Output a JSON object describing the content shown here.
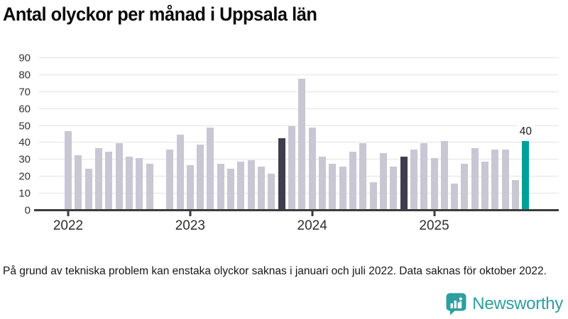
{
  "title": "Antal olyckor per månad i Uppsala län",
  "footnote": "På grund av tekniska problem kan enstaka olyckor saknas i januari och juli 2022. Data saknas för oktober 2022.",
  "logo": {
    "label": "Newsworthy",
    "icon": "newsworthy-bubble-chart-icon",
    "color": "#2f9e9e"
  },
  "colors": {
    "bar_normal": "#c8c7d3",
    "bar_highlight_dark": "#3f3c4e",
    "bar_highlight_teal": "#00a09a",
    "gridline": "#e4e4e4",
    "axis": "#3b3b3b"
  },
  "chart_data": {
    "type": "bar",
    "title": "Antal olyckor per månad i Uppsala län",
    "xlabel": "",
    "ylabel": "",
    "ylim": [
      0,
      90
    ],
    "yticks": [
      0,
      10,
      20,
      30,
      40,
      50,
      60,
      70,
      80,
      90
    ],
    "grid": true,
    "legend": "none",
    "x_unit": "month",
    "x_range": [
      "2022-01",
      "2025-10"
    ],
    "missing_months": [
      "2022-10"
    ],
    "annotation": {
      "text": "40",
      "month_index": 45
    },
    "year_ticks": [
      {
        "label": "2022",
        "month_index": 0
      },
      {
        "label": "2023",
        "month_index": 12
      },
      {
        "label": "2024",
        "month_index": 24
      },
      {
        "label": "2025",
        "month_index": 36
      }
    ],
    "months": [
      {
        "m": "2022-01",
        "v": 46,
        "c": "normal"
      },
      {
        "m": "2022-02",
        "v": 32,
        "c": "normal"
      },
      {
        "m": "2022-03",
        "v": 24,
        "c": "normal"
      },
      {
        "m": "2022-04",
        "v": 36,
        "c": "normal"
      },
      {
        "m": "2022-05",
        "v": 34,
        "c": "normal"
      },
      {
        "m": "2022-06",
        "v": 39,
        "c": "normal"
      },
      {
        "m": "2022-07",
        "v": 31,
        "c": "normal"
      },
      {
        "m": "2022-08",
        "v": 30,
        "c": "normal"
      },
      {
        "m": "2022-09",
        "v": 27,
        "c": "normal"
      },
      {
        "m": "2022-10",
        "v": null,
        "c": "normal"
      },
      {
        "m": "2022-11",
        "v": 35,
        "c": "normal"
      },
      {
        "m": "2022-12",
        "v": 44,
        "c": "normal"
      },
      {
        "m": "2023-01",
        "v": 26,
        "c": "normal"
      },
      {
        "m": "2023-02",
        "v": 38,
        "c": "normal"
      },
      {
        "m": "2023-03",
        "v": 48,
        "c": "normal"
      },
      {
        "m": "2023-04",
        "v": 27,
        "c": "normal"
      },
      {
        "m": "2023-05",
        "v": 24,
        "c": "normal"
      },
      {
        "m": "2023-06",
        "v": 28,
        "c": "normal"
      },
      {
        "m": "2023-07",
        "v": 29,
        "c": "normal"
      },
      {
        "m": "2023-08",
        "v": 25,
        "c": "normal"
      },
      {
        "m": "2023-09",
        "v": 21,
        "c": "normal"
      },
      {
        "m": "2023-10",
        "v": 42,
        "c": "dark"
      },
      {
        "m": "2023-11",
        "v": 49,
        "c": "normal"
      },
      {
        "m": "2023-12",
        "v": 77,
        "c": "normal"
      },
      {
        "m": "2024-01",
        "v": 48,
        "c": "normal"
      },
      {
        "m": "2024-02",
        "v": 31,
        "c": "normal"
      },
      {
        "m": "2024-03",
        "v": 27,
        "c": "normal"
      },
      {
        "m": "2024-04",
        "v": 25,
        "c": "normal"
      },
      {
        "m": "2024-05",
        "v": 34,
        "c": "normal"
      },
      {
        "m": "2024-06",
        "v": 39,
        "c": "normal"
      },
      {
        "m": "2024-07",
        "v": 16,
        "c": "normal"
      },
      {
        "m": "2024-08",
        "v": 33,
        "c": "normal"
      },
      {
        "m": "2024-09",
        "v": 25,
        "c": "normal"
      },
      {
        "m": "2024-10",
        "v": 31,
        "c": "dark"
      },
      {
        "m": "2024-11",
        "v": 35,
        "c": "normal"
      },
      {
        "m": "2024-12",
        "v": 39,
        "c": "normal"
      },
      {
        "m": "2025-01",
        "v": 30,
        "c": "normal"
      },
      {
        "m": "2025-02",
        "v": 40,
        "c": "normal"
      },
      {
        "m": "2025-03",
        "v": 15,
        "c": "normal"
      },
      {
        "m": "2025-04",
        "v": 27,
        "c": "normal"
      },
      {
        "m": "2025-05",
        "v": 36,
        "c": "normal"
      },
      {
        "m": "2025-06",
        "v": 28,
        "c": "normal"
      },
      {
        "m": "2025-07",
        "v": 35,
        "c": "normal"
      },
      {
        "m": "2025-08",
        "v": 35,
        "c": "normal"
      },
      {
        "m": "2025-09",
        "v": 17,
        "c": "normal"
      },
      {
        "m": "2025-10",
        "v": 40,
        "c": "teal"
      }
    ]
  }
}
